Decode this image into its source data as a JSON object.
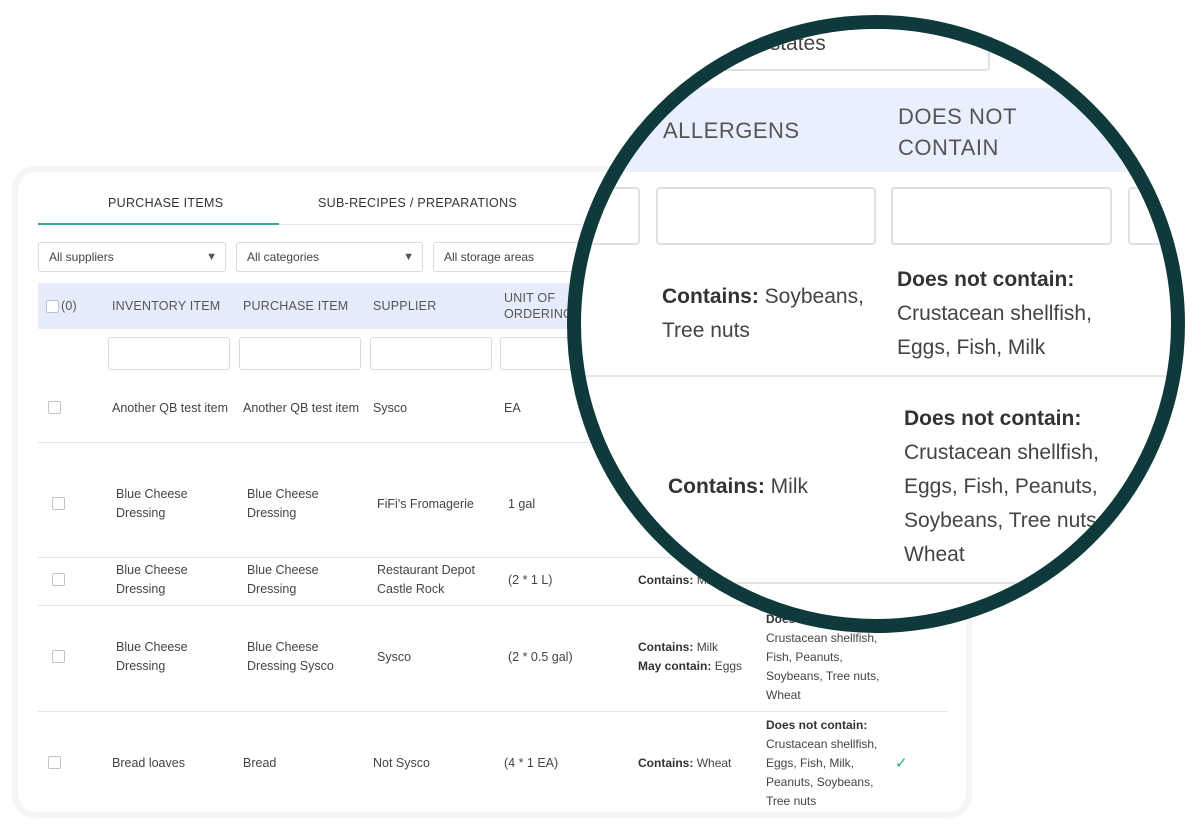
{
  "tabs": [
    "PURCHASE ITEMS",
    "SUB-RECIPES / PREPARATIONS"
  ],
  "filters": [
    "All suppliers",
    "All categories",
    "All storage areas"
  ],
  "table": {
    "select_count": "(0)",
    "columns": [
      "INVENTORY ITEM",
      "PURCHASE ITEM",
      "SUPPLIER",
      "UNIT OF ORDERING"
    ],
    "rows": [
      {
        "inventory_item": "Another QB test item",
        "purchase_item": "Another QB test item",
        "supplier": "Sysco",
        "unit": "EA"
      },
      {
        "inventory_item": "Blue Cheese Dressing",
        "purchase_item": "Blue Cheese Dressing",
        "supplier": "FiFi's Fromagerie",
        "unit": "1 gal"
      },
      {
        "inventory_item": "Blue Cheese Dressing",
        "purchase_item": "Blue Cheese Dressing",
        "supplier": "Restaurant Depot Castle Rock",
        "unit": "(2 * 1 L)",
        "contains": {
          "label": "Contains:",
          "text": "Milk"
        }
      },
      {
        "inventory_item": "Blue Cheese Dressing",
        "purchase_item": "Blue Cheese Dressing Sysco",
        "supplier": "Sysco",
        "unit": "(2 * 0.5 gal)",
        "contains": {
          "label": "Contains:",
          "text": "Milk"
        },
        "may_contain": {
          "label": "May contain:",
          "text": "Eggs"
        },
        "does_not_contain": {
          "label": "Does not contain:",
          "text": "Crustacean shellfish, Fish, Peanuts, Soybeans, Tree nuts, Wheat"
        }
      },
      {
        "inventory_item": "Bread loaves",
        "purchase_item": "Bread",
        "supplier": "Not Sysco",
        "unit": "(4 * 1 EA)",
        "contains": {
          "label": "Contains:",
          "text": "Wheat"
        },
        "does_not_contain": {
          "label": "Does not contain:",
          "text": "Crustacean shellfish, Eggs, Fish, Milk, Peanuts, Soybeans, Tree nuts"
        },
        "status": "✓"
      }
    ]
  },
  "zoom": {
    "filter": "tion states",
    "columns": [
      "ALLERGENS",
      "DOES NOT CONTAIN"
    ],
    "rows": [
      {
        "contains": {
          "label": "Contains:",
          "text": "Soybeans, Tree nuts"
        },
        "does_not_contain": {
          "label": "Does not contain:",
          "text": "Crustacean shellfish, Eggs, Fish, Milk"
        }
      },
      {
        "contains": {
          "label": "Contains:",
          "text": "Milk"
        },
        "does_not_contain": {
          "label": "Does not contain:",
          "text": "Crustacean shellfish, Eggs, Fish, Peanuts, Soybeans, Tree nuts, Wheat"
        }
      }
    ]
  }
}
